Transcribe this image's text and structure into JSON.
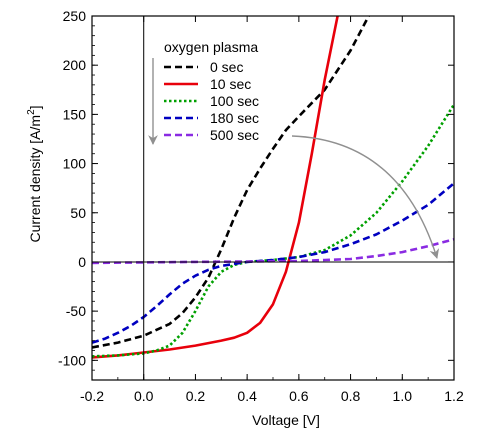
{
  "chart_data": {
    "type": "line",
    "xlabel": "Voltage [V]",
    "ylabel_main": "Current density [A/m",
    "ylabel_sup": "2",
    "ylabel_end": "]",
    "xlim": [
      -0.2,
      1.2
    ],
    "ylim": [
      -120,
      250
    ],
    "xticks": [
      -0.2,
      0.0,
      0.2,
      0.4,
      0.6,
      0.8,
      1.0,
      1.2
    ],
    "xtick_labels": [
      "-0.2",
      "0.0",
      "0.2",
      "0.4",
      "0.6",
      "0.8",
      "1.0",
      "1.2"
    ],
    "yticks": [
      -100,
      -50,
      0,
      50,
      100,
      150,
      200,
      250
    ],
    "ytick_labels": [
      "-100",
      "-50",
      "0",
      "50",
      "100",
      "150",
      "200",
      "250"
    ],
    "grid": false,
    "legend": {
      "title": "oxygen plasma",
      "placement": "top-left",
      "labels": [
        "0 sec",
        "10 sec",
        "100 sec",
        "180 sec",
        "500 sec"
      ]
    },
    "series": [
      {
        "name": "0 sec",
        "color": "#000000",
        "dash": "dashed",
        "x": [
          -0.2,
          -0.1,
          0.0,
          0.1,
          0.15,
          0.2,
          0.25,
          0.3,
          0.35,
          0.4,
          0.45,
          0.5,
          0.55,
          0.6,
          0.7,
          0.8,
          0.87
        ],
        "y": [
          -87,
          -82,
          -75,
          -63,
          -52,
          -36,
          -16,
          13,
          45,
          73,
          95,
          115,
          134,
          148,
          175,
          215,
          250
        ]
      },
      {
        "name": "10 sec",
        "color": "#e8000b",
        "dash": "solid",
        "x": [
          -0.2,
          -0.1,
          0.0,
          0.1,
          0.2,
          0.3,
          0.35,
          0.4,
          0.45,
          0.5,
          0.55,
          0.6,
          0.65,
          0.7,
          0.75
        ],
        "y": [
          -97,
          -95,
          -92,
          -89,
          -85,
          -80,
          -77,
          -72,
          -62,
          -43,
          -10,
          40,
          110,
          185,
          250
        ]
      },
      {
        "name": "100 sec",
        "color": "#00a000",
        "dash": "dotted",
        "x": [
          -0.2,
          -0.1,
          0.0,
          0.05,
          0.1,
          0.15,
          0.2,
          0.25,
          0.3,
          0.35,
          0.4,
          0.5,
          0.6,
          0.7,
          0.8,
          0.9,
          1.0,
          1.1,
          1.2
        ],
        "y": [
          -96,
          -95,
          -93,
          -90,
          -85,
          -72,
          -50,
          -25,
          -10,
          -3,
          0,
          2,
          5,
          12,
          27,
          50,
          82,
          118,
          160
        ]
      },
      {
        "name": "180 sec",
        "color": "#0000c0",
        "dash": "dashed",
        "x": [
          -0.2,
          -0.15,
          -0.1,
          -0.05,
          0.0,
          0.05,
          0.1,
          0.15,
          0.2,
          0.25,
          0.3,
          0.4,
          0.5,
          0.6,
          0.7,
          0.8,
          0.9,
          1.0,
          1.1,
          1.2
        ],
        "y": [
          -82,
          -78,
          -72,
          -65,
          -56,
          -45,
          -33,
          -22,
          -14,
          -8,
          -4,
          0,
          2,
          5,
          10,
          18,
          28,
          42,
          58,
          80
        ]
      },
      {
        "name": "500 sec",
        "color": "#8a2be2",
        "dash": "dashed",
        "x": [
          -0.2,
          0.0,
          0.2,
          0.4,
          0.6,
          0.7,
          0.8,
          0.9,
          1.0,
          1.1,
          1.2
        ],
        "y": [
          -1,
          -0.5,
          0,
          0.5,
          1,
          2,
          3,
          6,
          10,
          16,
          23
        ]
      }
    ],
    "annotations": [
      {
        "kind": "arrow-down-left",
        "color": "#909090"
      },
      {
        "kind": "curved-arrow",
        "color": "#909090"
      }
    ]
  }
}
